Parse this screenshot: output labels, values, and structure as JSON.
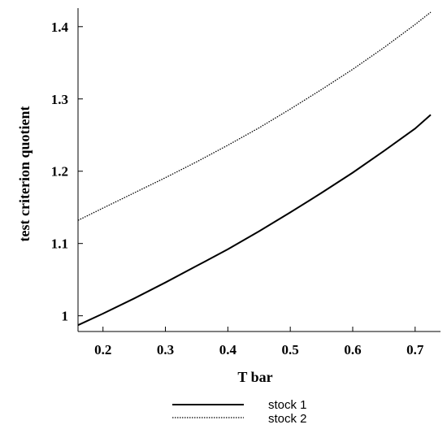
{
  "chart_data": {
    "type": "line",
    "xlabel": "T bar",
    "ylabel": "test criterion quotient",
    "xlim": [
      0.16,
      0.725
    ],
    "ylim": [
      0.985,
      1.42
    ],
    "x_ticks": [
      0.2,
      0.3,
      0.4,
      0.5,
      0.6,
      0.7
    ],
    "x_tick_labels": [
      "0.2",
      "0.3",
      "0.4",
      "0.5",
      "0.6",
      "0.7"
    ],
    "y_ticks": [
      1.0,
      1.1,
      1.2,
      1.3,
      1.4
    ],
    "y_tick_labels": [
      "1",
      "1.1",
      "1.2",
      "1.3",
      "1.4"
    ],
    "grid": false,
    "legend_position": "bottom",
    "series": [
      {
        "name": "stock 1",
        "style": "solid",
        "color": "#000000",
        "x": [
          0.16,
          0.2,
          0.25,
          0.3,
          0.35,
          0.4,
          0.45,
          0.5,
          0.55,
          0.6,
          0.65,
          0.7,
          0.725
        ],
        "y": [
          0.987,
          1.003,
          1.024,
          1.046,
          1.069,
          1.092,
          1.117,
          1.143,
          1.17,
          1.198,
          1.228,
          1.259,
          1.278
        ]
      },
      {
        "name": "stock 2",
        "style": "dotted",
        "color": "#000000",
        "x": [
          0.16,
          0.2,
          0.25,
          0.3,
          0.35,
          0.4,
          0.45,
          0.5,
          0.55,
          0.6,
          0.65,
          0.7,
          0.725
        ],
        "y": [
          1.132,
          1.149,
          1.17,
          1.191,
          1.213,
          1.236,
          1.26,
          1.286,
          1.313,
          1.341,
          1.371,
          1.403,
          1.42
        ]
      }
    ]
  }
}
